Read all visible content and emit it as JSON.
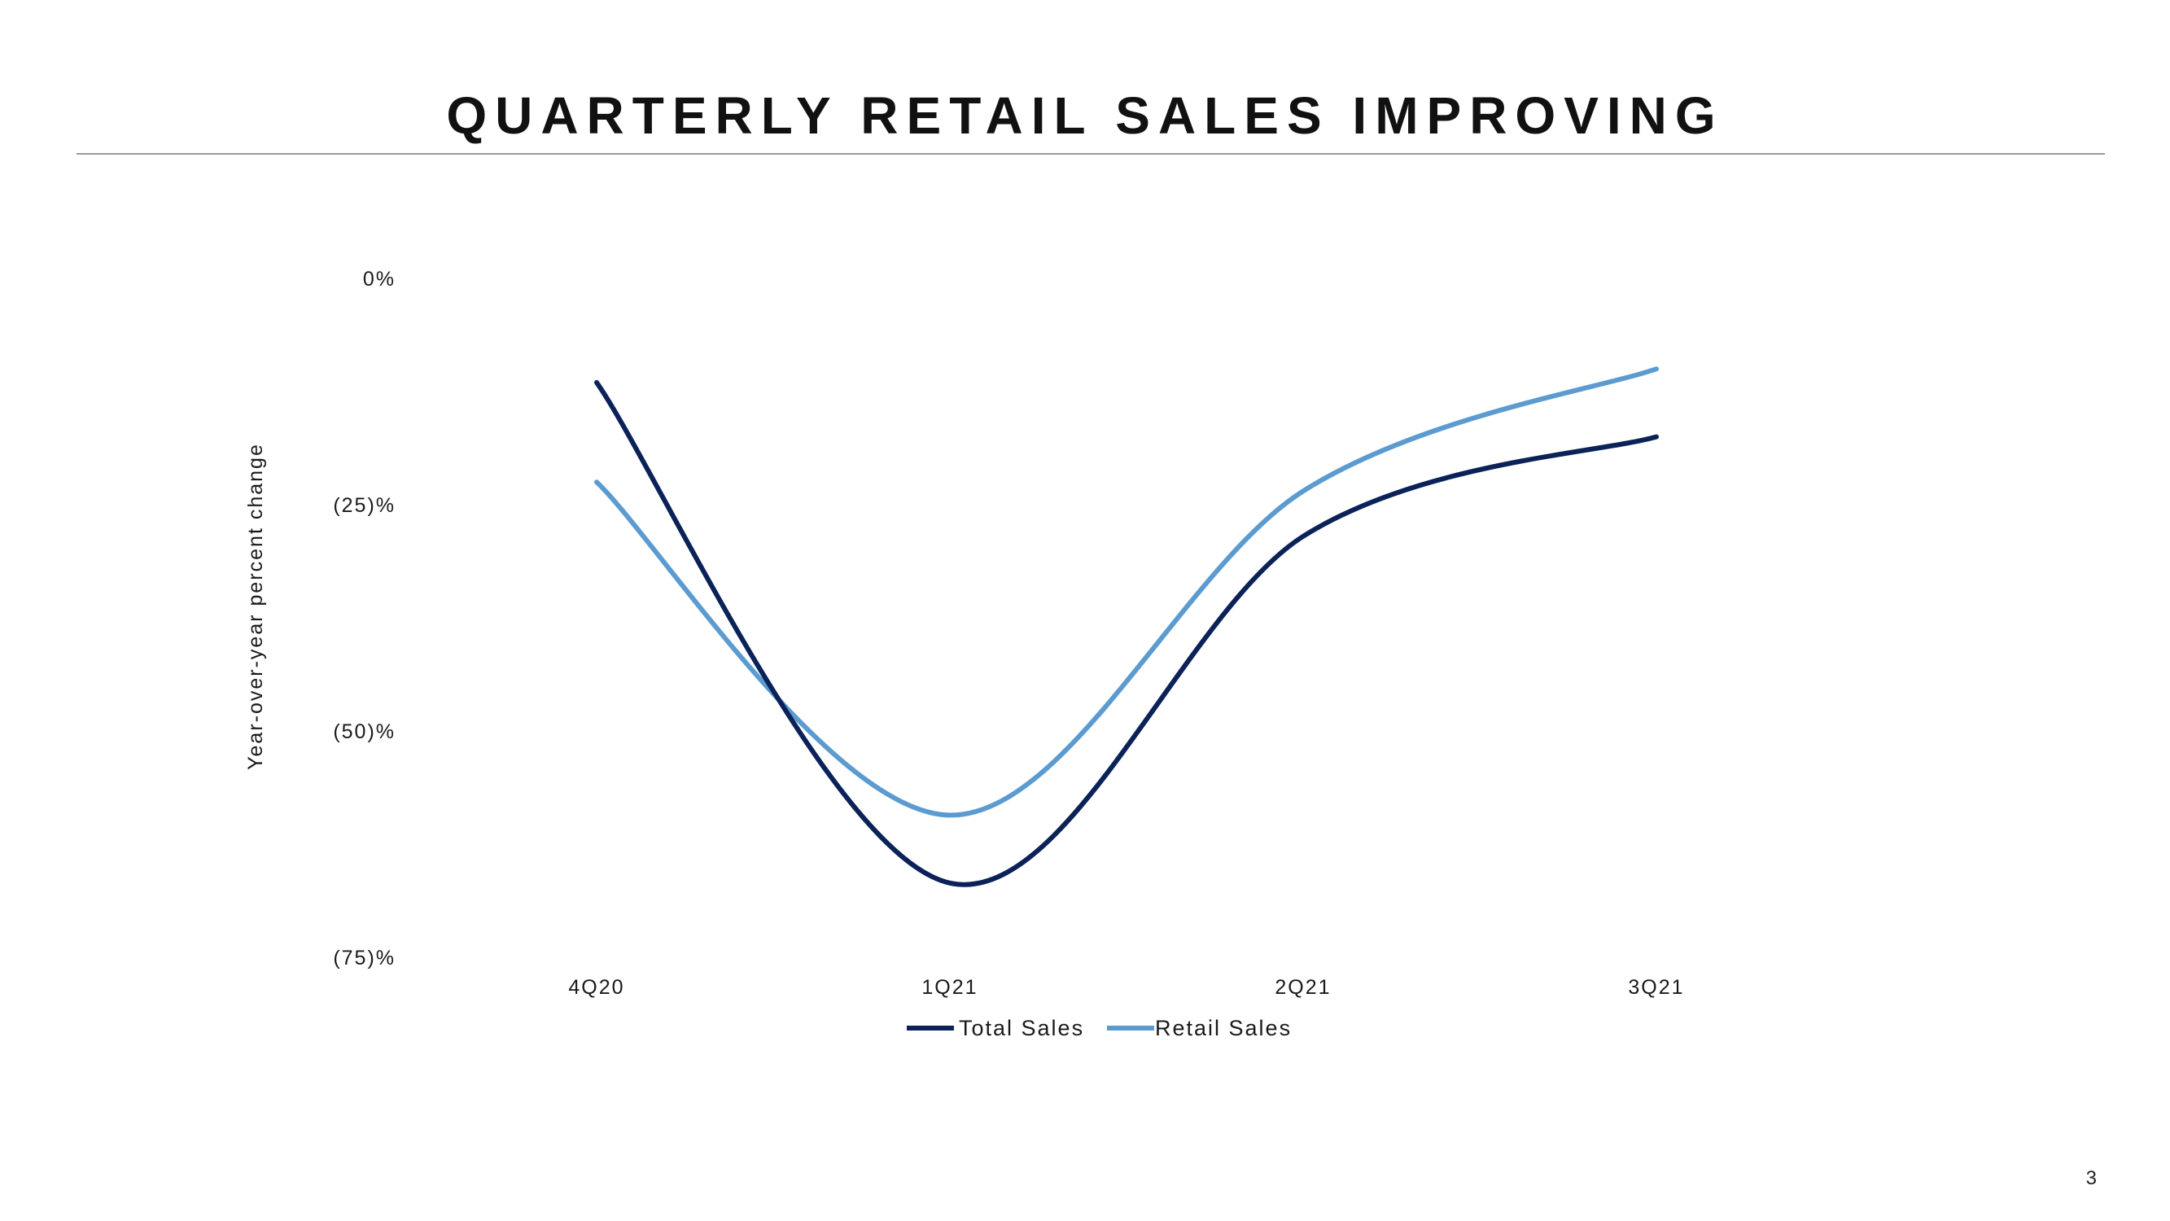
{
  "slide": {
    "title": "QUARTERLY RETAIL SALES IMPROVING",
    "page_number": "3"
  },
  "chart_data": {
    "type": "line",
    "title": "",
    "xlabel": "",
    "ylabel": "Year-over-year percent change",
    "categories": [
      "4Q20",
      "1Q21",
      "2Q21",
      "3Q21"
    ],
    "y_ticks": [
      {
        "value": 0,
        "label": "0%"
      },
      {
        "value": -25,
        "label": "(25)%"
      },
      {
        "value": -50,
        "label": "(50)%"
      },
      {
        "value": -75,
        "label": "(75)%"
      }
    ],
    "ylim": [
      -75,
      0
    ],
    "grid": false,
    "legend": "bottom-center",
    "series": [
      {
        "name": "Total Sales",
        "color": "#0b2259",
        "values": [
          -11.5,
          -66.8,
          -28.5,
          -17.5
        ]
      },
      {
        "name": "Retail Sales",
        "color": "#5b9bd0",
        "values": [
          -22.5,
          -59.3,
          -23.5,
          -10
        ]
      }
    ]
  }
}
